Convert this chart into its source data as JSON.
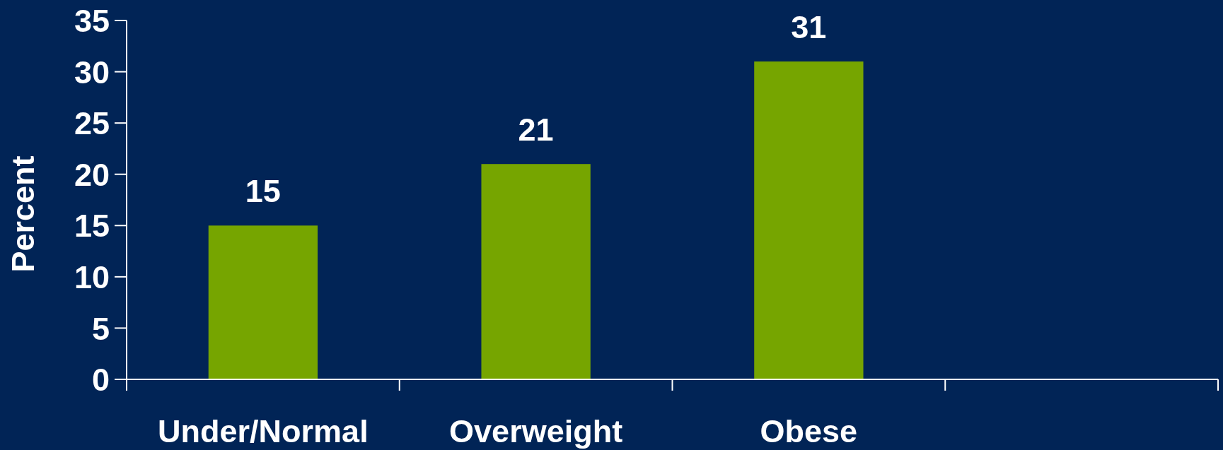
{
  "chart_data": {
    "type": "bar",
    "ylabel": "Percent",
    "categories": [
      "Under/Normal",
      "Overweight",
      "Obese",
      null
    ],
    "values": [
      15,
      21,
      31,
      null
    ],
    "color": "#76a500",
    "ylim": [
      0,
      35
    ],
    "yticks": [
      0,
      5,
      10,
      15,
      20,
      25,
      30,
      35
    ],
    "data_labels": true
  }
}
